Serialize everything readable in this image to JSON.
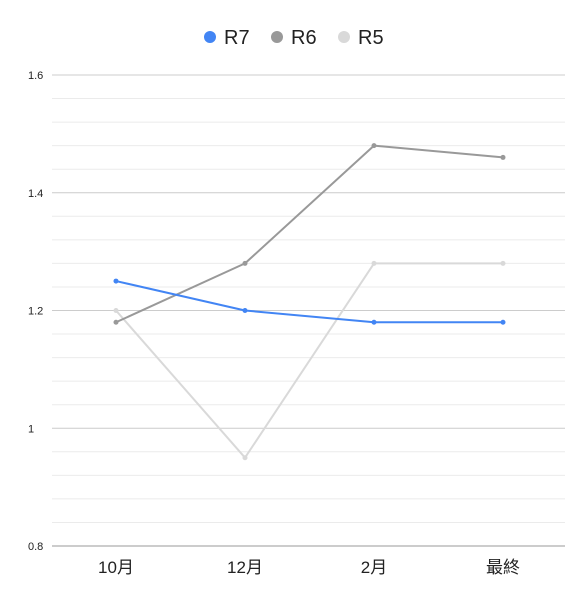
{
  "chart_data": {
    "type": "line",
    "categories": [
      "10月",
      "12月",
      "2月",
      "最終"
    ],
    "series": [
      {
        "name": "R7",
        "color": "#4285F4",
        "values": [
          1.25,
          1.2,
          1.18,
          1.18
        ]
      },
      {
        "name": "R6",
        "color": "#999999",
        "values": [
          1.18,
          1.28,
          1.48,
          1.46
        ]
      },
      {
        "name": "R5",
        "color": "#D9D9D9",
        "values": [
          1.2,
          0.95,
          1.28,
          1.28
        ]
      }
    ],
    "yticks": [
      {
        "value": 0.8,
        "label": "0.8"
      },
      {
        "value": 1.0,
        "label": "1"
      },
      {
        "value": 1.2,
        "label": "1.2"
      },
      {
        "value": 1.4,
        "label": "1.4"
      },
      {
        "value": 1.6,
        "label": "1.6"
      }
    ],
    "ylim": [
      0.8,
      1.6
    ],
    "minor_gridlines_per_major": 5,
    "grid": true,
    "legend_position": "top-center",
    "title": "",
    "xlabel": "",
    "ylabel": "",
    "colors": {
      "major_grid": "#CCCCCC",
      "minor_grid": "#EBEBEB",
      "axis": "#999999",
      "text": "#222222"
    }
  }
}
